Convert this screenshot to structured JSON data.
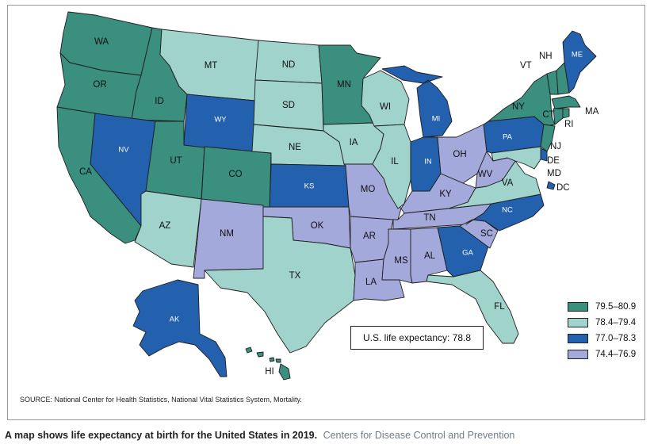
{
  "colors": {
    "c1": "#3a8f7f",
    "c2": "#9fd3cb",
    "c3": "#2360ad",
    "c4": "#a4a9dc"
  },
  "legend": [
    {
      "key": "c1",
      "label": "79.5–80.9"
    },
    {
      "key": "c2",
      "label": "78.4–79.4"
    },
    {
      "key": "c3",
      "label": "77.0–78.3"
    },
    {
      "key": "c4",
      "label": "74.4–76.9"
    }
  ],
  "us_summary": "U.S. life expectancy: 78.8",
  "source": "SOURCE: National Center for Health Statistics, National Vital Statistics System, Mortality.",
  "caption": {
    "main": "A map shows life expectancy at birth for the United States in 2019.",
    "credit": "Centers for Disease Control and Prevention"
  },
  "states": [
    {
      "id": "WA",
      "category": "c1"
    },
    {
      "id": "OR",
      "category": "c1"
    },
    {
      "id": "CA",
      "category": "c1"
    },
    {
      "id": "ID",
      "category": "c1"
    },
    {
      "id": "NV",
      "category": "c3"
    },
    {
      "id": "UT",
      "category": "c1"
    },
    {
      "id": "AZ",
      "category": "c2"
    },
    {
      "id": "MT",
      "category": "c2"
    },
    {
      "id": "WY",
      "category": "c3"
    },
    {
      "id": "CO",
      "category": "c1"
    },
    {
      "id": "NM",
      "category": "c4"
    },
    {
      "id": "ND",
      "category": "c2"
    },
    {
      "id": "SD",
      "category": "c2"
    },
    {
      "id": "NE",
      "category": "c2"
    },
    {
      "id": "KS",
      "category": "c3"
    },
    {
      "id": "OK",
      "category": "c4"
    },
    {
      "id": "TX",
      "category": "c2"
    },
    {
      "id": "MN",
      "category": "c1"
    },
    {
      "id": "IA",
      "category": "c2"
    },
    {
      "id": "MO",
      "category": "c4"
    },
    {
      "id": "AR",
      "category": "c4"
    },
    {
      "id": "LA",
      "category": "c4"
    },
    {
      "id": "WI",
      "category": "c2"
    },
    {
      "id": "IL",
      "category": "c2"
    },
    {
      "id": "MI",
      "category": "c3"
    },
    {
      "id": "IN",
      "category": "c3"
    },
    {
      "id": "OH",
      "category": "c4"
    },
    {
      "id": "KY",
      "category": "c4"
    },
    {
      "id": "TN",
      "category": "c4"
    },
    {
      "id": "MS",
      "category": "c4"
    },
    {
      "id": "AL",
      "category": "c4"
    },
    {
      "id": "GA",
      "category": "c3"
    },
    {
      "id": "FL",
      "category": "c2"
    },
    {
      "id": "SC",
      "category": "c4"
    },
    {
      "id": "NC",
      "category": "c3"
    },
    {
      "id": "VA",
      "category": "c2"
    },
    {
      "id": "WV",
      "category": "c4"
    },
    {
      "id": "PA",
      "category": "c3"
    },
    {
      "id": "NY",
      "category": "c1"
    },
    {
      "id": "VT",
      "category": "c1"
    },
    {
      "id": "NH",
      "category": "c1"
    },
    {
      "id": "ME",
      "category": "c3"
    },
    {
      "id": "MA",
      "category": "c1"
    },
    {
      "id": "CT",
      "category": "c1"
    },
    {
      "id": "RI",
      "category": "c1"
    },
    {
      "id": "NJ",
      "category": "c1"
    },
    {
      "id": "DE",
      "category": "c3"
    },
    {
      "id": "MD",
      "category": "c2"
    },
    {
      "id": "DC",
      "category": "c3"
    },
    {
      "id": "AK",
      "category": "c3"
    },
    {
      "id": "HI",
      "category": "c1"
    }
  ]
}
